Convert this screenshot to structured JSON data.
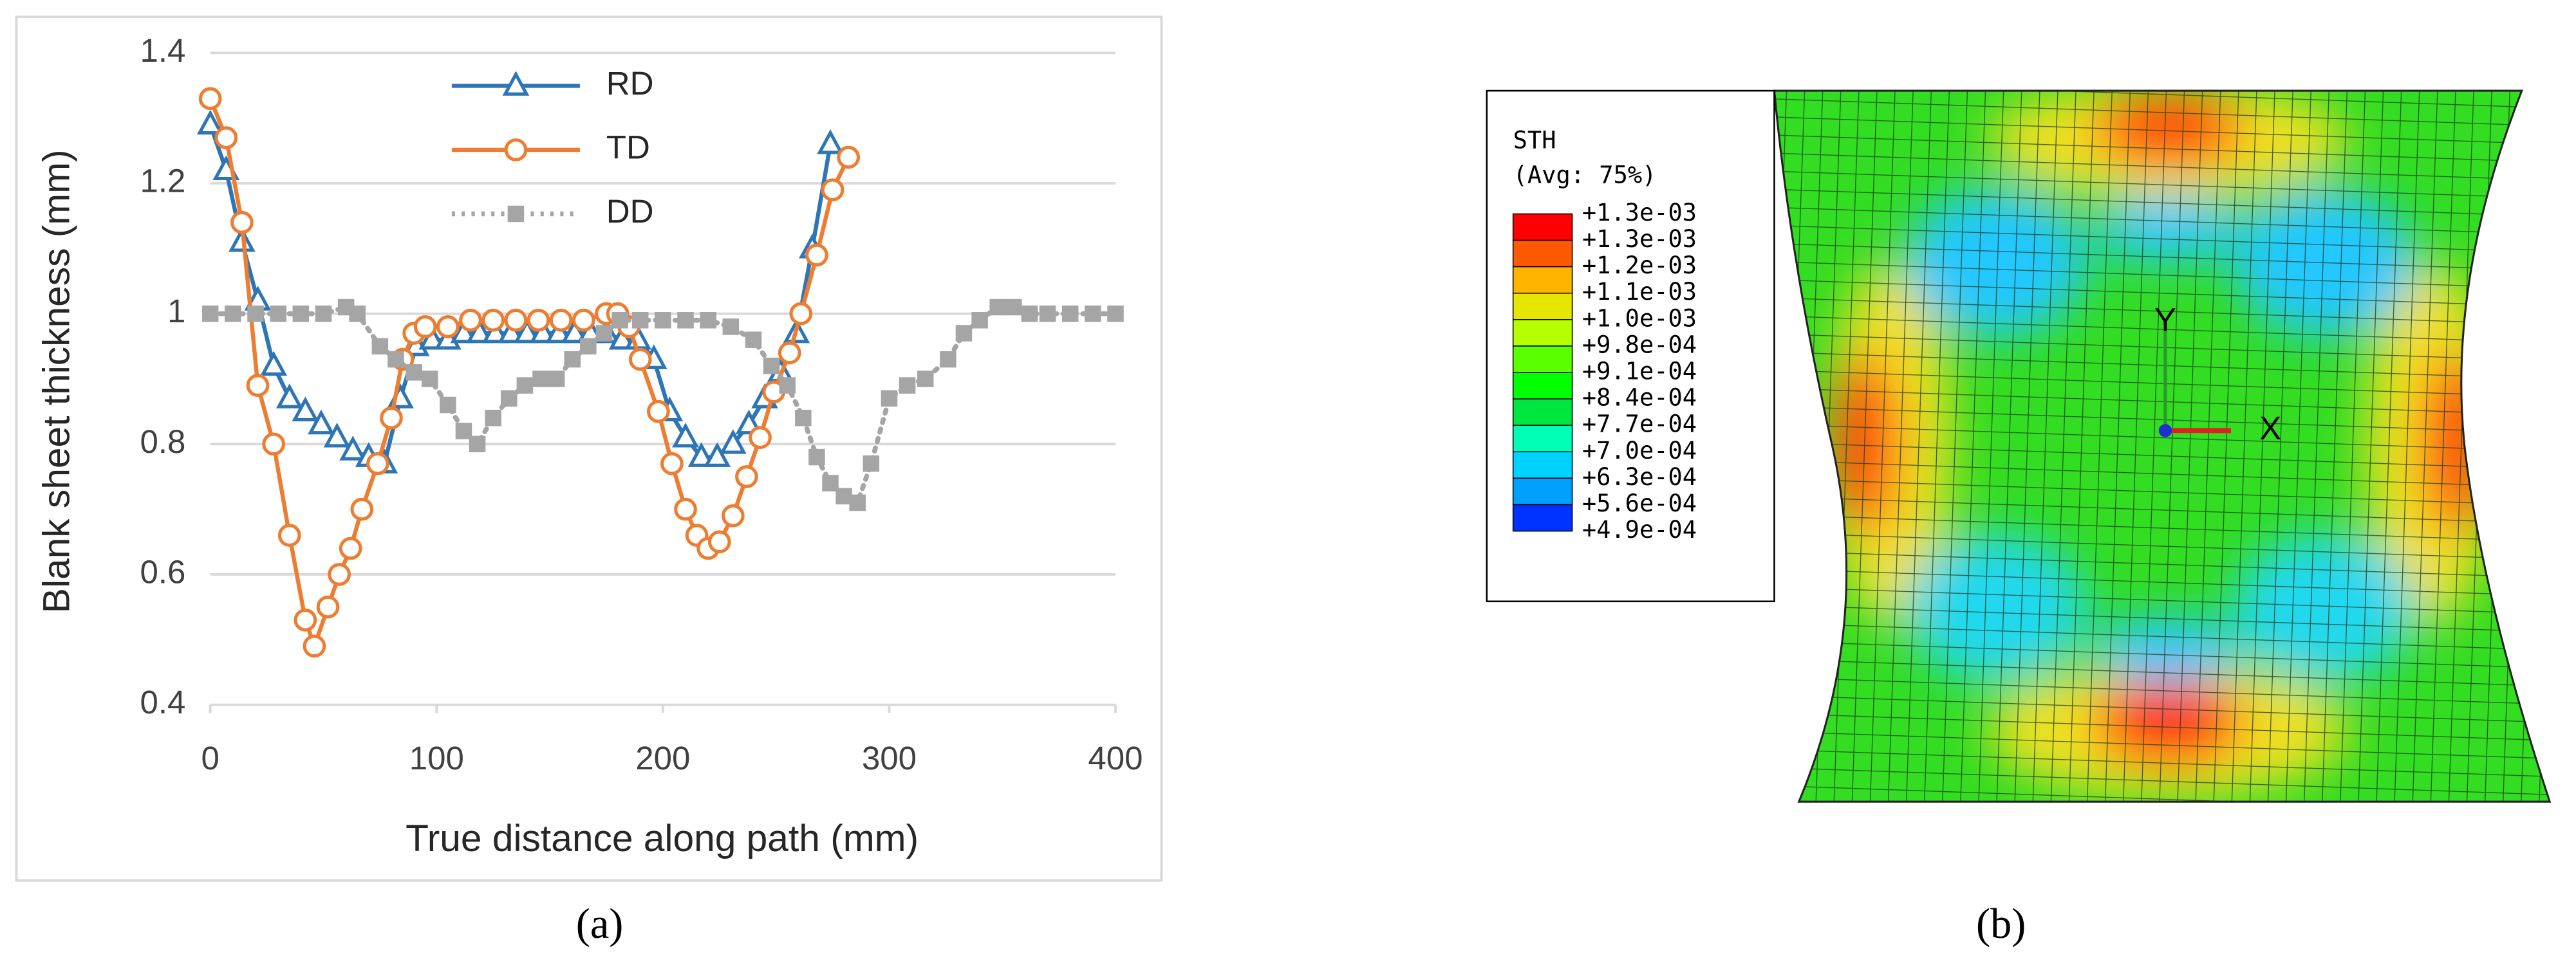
{
  "chart_data": {
    "type": "line",
    "xlabel": "True distance along path (mm)",
    "ylabel": "Blank sheet thickness (mm)",
    "xlim": [
      0,
      400
    ],
    "xticks": [
      0,
      100,
      200,
      300,
      400
    ],
    "ylim": [
      0.4,
      1.4
    ],
    "yticks": [
      0.4,
      0.6,
      0.8,
      1,
      1.2,
      1.4
    ],
    "grid": true,
    "legend": "upper-center",
    "series": [
      {
        "name": "RD",
        "color": "#2e75b6",
        "marker": "triangle",
        "dash": "solid",
        "x": [
          0,
          7,
          14,
          21,
          28,
          35,
          42,
          49,
          56,
          63,
          70,
          77,
          84,
          91,
          98,
          105,
          112,
          119,
          126,
          133,
          140,
          147,
          154,
          161,
          168,
          175,
          182,
          189,
          196,
          203,
          210,
          217,
          224,
          231,
          238,
          245,
          252,
          259,
          266,
          274
        ],
        "values": [
          1.29,
          1.22,
          1.11,
          1.02,
          0.92,
          0.87,
          0.85,
          0.83,
          0.81,
          0.79,
          0.78,
          0.77,
          0.87,
          0.95,
          0.96,
          0.96,
          0.97,
          0.97,
          0.97,
          0.97,
          0.97,
          0.97,
          0.97,
          0.97,
          0.97,
          0.97,
          0.96,
          0.96,
          0.93,
          0.85,
          0.81,
          0.78,
          0.78,
          0.8,
          0.83,
          0.87,
          0.91,
          0.97,
          1.1,
          1.26
        ]
      },
      {
        "name": "TD",
        "color": "#ed7d31",
        "marker": "circle",
        "dash": "solid",
        "x": [
          0,
          7,
          14,
          21,
          28,
          35,
          42,
          46,
          52,
          57,
          62,
          67,
          74,
          80,
          85,
          90,
          95,
          105,
          115,
          125,
          135,
          145,
          155,
          165,
          175,
          180,
          185,
          190,
          198,
          204,
          210,
          215,
          220,
          225,
          231,
          237,
          243,
          249,
          256,
          261,
          268,
          275,
          282
        ],
        "values": [
          1.33,
          1.27,
          1.14,
          0.89,
          0.8,
          0.66,
          0.53,
          0.49,
          0.55,
          0.6,
          0.64,
          0.7,
          0.77,
          0.84,
          0.93,
          0.97,
          0.98,
          0.98,
          0.99,
          0.99,
          0.99,
          0.99,
          0.99,
          0.99,
          1.0,
          1.0,
          0.98,
          0.93,
          0.85,
          0.77,
          0.7,
          0.66,
          0.64,
          0.65,
          0.69,
          0.75,
          0.81,
          0.88,
          0.94,
          1.0,
          1.09,
          1.19,
          1.24
        ]
      },
      {
        "name": "DD",
        "color": "#a5a5a5",
        "marker": "square",
        "dash": "dotted",
        "x": [
          0,
          10,
          20,
          30,
          40,
          50,
          60,
          65,
          75,
          82,
          90,
          97,
          105,
          112,
          118,
          125,
          132,
          139,
          146,
          153,
          160,
          167,
          174,
          181,
          190,
          200,
          210,
          220,
          230,
          240,
          248,
          255,
          262,
          268,
          274,
          280,
          286,
          292,
          300,
          308,
          316,
          326,
          333,
          340,
          348,
          355,
          362,
          370,
          380,
          390,
          400
        ],
        "values": [
          1.0,
          1.0,
          1.0,
          1.0,
          1.0,
          1.0,
          1.01,
          1.0,
          0.95,
          0.93,
          0.91,
          0.9,
          0.86,
          0.82,
          0.8,
          0.84,
          0.87,
          0.89,
          0.9,
          0.9,
          0.93,
          0.95,
          0.97,
          0.99,
          0.99,
          0.99,
          0.99,
          0.99,
          0.98,
          0.96,
          0.92,
          0.89,
          0.84,
          0.78,
          0.74,
          0.72,
          0.71,
          0.77,
          0.87,
          0.89,
          0.9,
          0.93,
          0.97,
          0.99,
          1.01,
          1.01,
          1.0,
          1.0,
          1.0,
          1.0,
          1.0
        ]
      }
    ]
  },
  "figure_b": {
    "legend_title": "STH",
    "legend_subtitle": "(Avg: 75%)",
    "levels": [
      "+1.3e-03",
      "+1.3e-03",
      "+1.2e-03",
      "+1.1e-03",
      "+1.0e-03",
      "+9.8e-04",
      "+9.1e-04",
      "+8.4e-04",
      "+7.7e-04",
      "+7.0e-04",
      "+6.3e-04",
      "+5.6e-04",
      "+4.9e-04"
    ],
    "level_colors": [
      "#ff0000",
      "#ff5a00",
      "#ffb400",
      "#e6e600",
      "#b4ff00",
      "#5aff00",
      "#00ff00",
      "#00e640",
      "#00ffb4",
      "#00d2ff",
      "#00a0ff",
      "#0032ff"
    ],
    "triad": [
      "Y",
      "X"
    ]
  },
  "captions": [
    "(a)",
    "(b)"
  ]
}
